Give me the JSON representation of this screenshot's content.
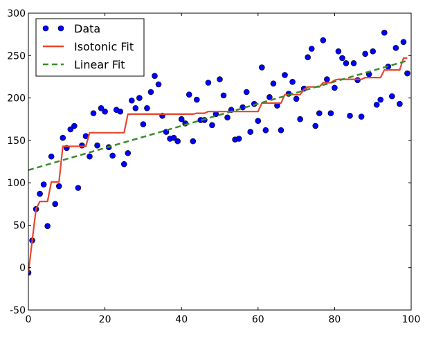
{
  "chart_data": {
    "type": "scatter",
    "title": "",
    "xlabel": "",
    "ylabel": "",
    "xlim": [
      0,
      100
    ],
    "ylim": [
      -50,
      300
    ],
    "xticks": [
      0,
      20,
      40,
      60,
      80,
      100
    ],
    "yticks": [
      -50,
      0,
      50,
      100,
      150,
      200,
      250,
      300
    ],
    "grid": false,
    "legend_position": "top-left",
    "series": [
      {
        "name": "Data",
        "kind": "markers",
        "color": "#0000ff",
        "x": [
          0,
          1,
          2,
          3,
          4,
          5,
          6,
          7,
          8,
          9,
          10,
          11,
          12,
          13,
          14,
          15,
          16,
          17,
          18,
          19,
          20,
          21,
          22,
          23,
          24,
          25,
          26,
          27,
          28,
          29,
          30,
          31,
          32,
          33,
          34,
          35,
          36,
          37,
          38,
          39,
          40,
          41,
          42,
          43,
          44,
          45,
          46,
          47,
          48,
          49,
          50,
          51,
          52,
          53,
          54,
          55,
          56,
          57,
          58,
          59,
          60,
          61,
          62,
          63,
          64,
          65,
          66,
          67,
          68,
          69,
          70,
          71,
          72,
          73,
          74,
          75,
          76,
          77,
          78,
          79,
          80,
          81,
          82,
          83,
          84,
          85,
          86,
          87,
          88,
          89,
          90,
          91,
          92,
          93,
          94,
          95,
          96,
          97,
          98,
          99
        ],
        "y": [
          -6,
          32,
          69,
          87,
          98,
          49,
          131,
          75,
          96,
          153,
          141,
          163,
          167,
          94,
          144,
          155,
          131,
          182,
          144,
          188,
          184,
          142,
          132,
          186,
          184,
          122,
          135,
          197,
          188,
          200,
          169,
          188,
          207,
          226,
          216,
          179,
          160,
          152,
          153,
          149,
          175,
          170,
          204,
          149,
          198,
          174,
          174,
          218,
          168,
          181,
          222,
          203,
          177,
          186,
          151,
          152,
          189,
          207,
          160,
          193,
          173,
          236,
          162,
          201,
          217,
          191,
          162,
          227,
          205,
          219,
          199,
          175,
          211,
          248,
          258,
          167,
          182,
          268,
          222,
          182,
          212,
          255,
          247,
          241,
          179,
          241,
          221,
          178,
          252,
          228,
          255,
          192,
          198,
          277,
          237,
          202,
          259,
          193,
          266,
          229
        ]
      },
      {
        "name": "Isotonic Fit",
        "kind": "line",
        "color": "#e8442c",
        "x": [
          0,
          1,
          2,
          3,
          4,
          5,
          6,
          7,
          8,
          9,
          10,
          11,
          12,
          13,
          14,
          15,
          16,
          17,
          18,
          19,
          20,
          21,
          22,
          23,
          24,
          25,
          26,
          27,
          28,
          29,
          30,
          31,
          32,
          33,
          34,
          35,
          36,
          37,
          38,
          39,
          40,
          41,
          42,
          43,
          44,
          45,
          46,
          47,
          48,
          49,
          50,
          51,
          52,
          53,
          54,
          55,
          56,
          57,
          58,
          59,
          60,
          61,
          62,
          63,
          64,
          65,
          66,
          67,
          68,
          69,
          70,
          71,
          72,
          73,
          74,
          75,
          76,
          77,
          78,
          79,
          80,
          81,
          82,
          83,
          84,
          85,
          86,
          87,
          88,
          89,
          90,
          91,
          92,
          93,
          94,
          95,
          96,
          97,
          98,
          99
        ],
        "y": [
          -6,
          32,
          69,
          78,
          78,
          78,
          101,
          101,
          101,
          143,
          143,
          143,
          143,
          143,
          143,
          143,
          159,
          159,
          159,
          159,
          159,
          159,
          159,
          159,
          159,
          159,
          181,
          181,
          181,
          181,
          181,
          181,
          181,
          181,
          181,
          181,
          181,
          181,
          181,
          181,
          181,
          181,
          181,
          181,
          182,
          182,
          182,
          184,
          184,
          184,
          184,
          184,
          184,
          184,
          184,
          184,
          184,
          184,
          184,
          184,
          184,
          194,
          194,
          194,
          194,
          194,
          194,
          204,
          204,
          204,
          204,
          204,
          210,
          213,
          213,
          213,
          213,
          218,
          218,
          218,
          221,
          222,
          222,
          222,
          222,
          222,
          222,
          222,
          224,
          224,
          224,
          224,
          224,
          233,
          233,
          233,
          233,
          233,
          247,
          247
        ]
      },
      {
        "name": "Linear Fit",
        "kind": "dashed-line",
        "color": "#3a8a2a",
        "x": [
          0,
          99
        ],
        "y": [
          115,
          244
        ]
      }
    ]
  }
}
